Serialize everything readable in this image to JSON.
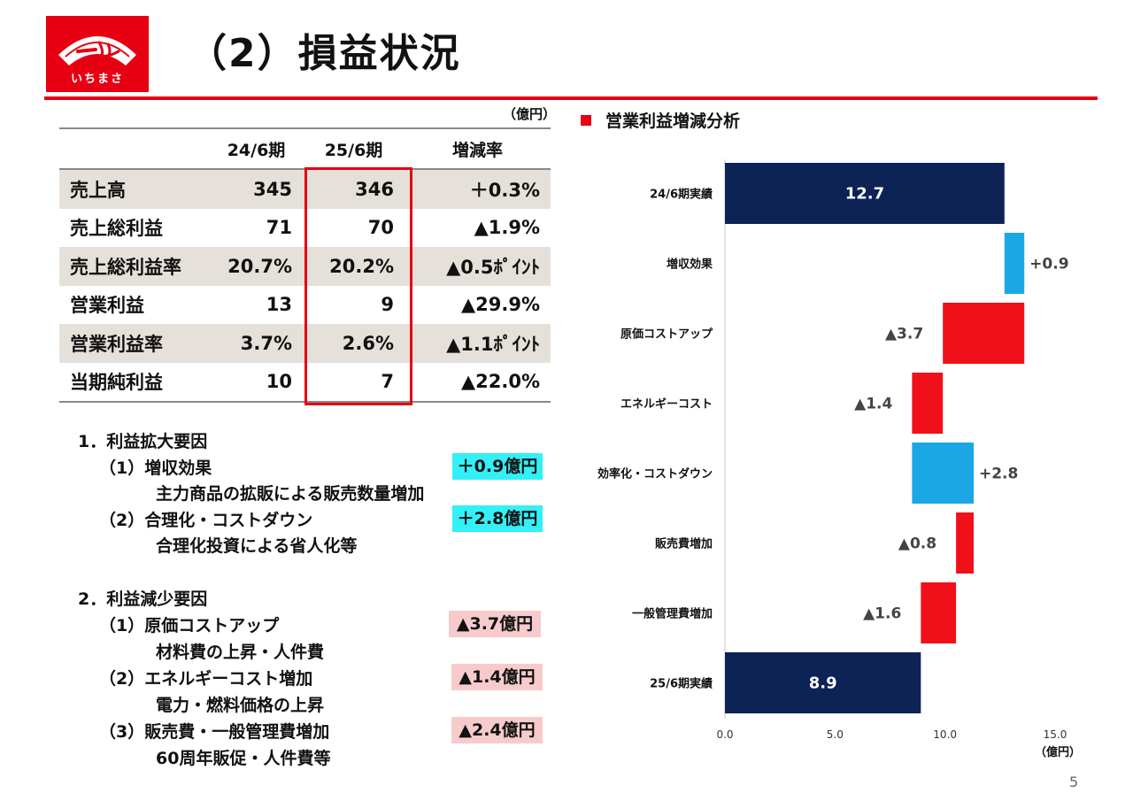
{
  "header": {
    "logo_text": "いちまさ",
    "title": "（2）損益状況"
  },
  "table": {
    "unit": "（億円）",
    "headers": [
      "",
      "24/6期",
      "25/6期",
      "増減率"
    ],
    "rows": [
      {
        "label": "売上高",
        "prev": "345",
        "curr": "346",
        "change": "＋0.3%"
      },
      {
        "label": "売上総利益",
        "prev": "71",
        "curr": "70",
        "change": "▲1.9%"
      },
      {
        "label": "売上総利益率",
        "prev": "20.7%",
        "curr": "20.2%",
        "change": "▲0.5ﾎﾟｲﾝﾄ"
      },
      {
        "label": "営業利益",
        "prev": "13",
        "curr": "9",
        "change": "▲29.9%"
      },
      {
        "label": "営業利益率",
        "prev": "3.7%",
        "curr": "2.6%",
        "change": "▲1.1ﾎﾟｲﾝﾄ"
      },
      {
        "label": "当期純利益",
        "prev": "10",
        "curr": "7",
        "change": "▲22.0%"
      }
    ]
  },
  "factors": {
    "increase": {
      "heading": "1．利益拡大要因",
      "items": [
        {
          "label": "（1）増収効果",
          "detail": "主力商品の拡販による販売数量増加",
          "amount": "＋0.9億円"
        },
        {
          "label": "（2）合理化・コストダウン",
          "detail": "合理化投資による省人化等",
          "amount": "＋2.8億円"
        }
      ]
    },
    "decrease": {
      "heading": "2．利益減少要因",
      "items": [
        {
          "label": "（1）原価コストアップ",
          "detail": "材料費の上昇・人件費",
          "amount": "▲3.7億円"
        },
        {
          "label": "（2）エネルギーコスト増加",
          "detail": "電力・燃料価格の上昇",
          "amount": "▲1.4億円"
        },
        {
          "label": "（3）販売費・一般管理費増加",
          "detail": "60周年販促・人件費等",
          "amount": "▲2.4億円"
        }
      ]
    }
  },
  "chart": {
    "title": "営業利益増減分析",
    "unit_label": "（億円）",
    "page_number": "5"
  },
  "chart_data": {
    "type": "bar",
    "orientation": "horizontal-waterfall",
    "title": "営業利益増減分析",
    "xlim": [
      0,
      15
    ],
    "xticks": [
      "0.0",
      "5.0",
      "10.0",
      "15.0"
    ],
    "colors": {
      "total": "#0d2255",
      "increase": "#1ba6e6",
      "decrease": "#f0101a"
    },
    "steps": [
      {
        "category": "24/6期実績",
        "kind": "total",
        "start": 0,
        "end": 12.7,
        "label": "12.7"
      },
      {
        "category": "増収効果",
        "kind": "increase",
        "start": 12.7,
        "end": 13.6,
        "label": "+0.9"
      },
      {
        "category": "原価コストアップ",
        "kind": "decrease",
        "start": 13.6,
        "end": 9.9,
        "label": "▲3.7"
      },
      {
        "category": "エネルギーコスト",
        "kind": "decrease",
        "start": 9.9,
        "end": 8.5,
        "label": "▲1.4"
      },
      {
        "category": "効率化・コストダウン",
        "kind": "increase",
        "start": 8.5,
        "end": 11.3,
        "label": "+2.8"
      },
      {
        "category": "販売費増加",
        "kind": "decrease",
        "start": 11.3,
        "end": 10.5,
        "label": "▲0.8"
      },
      {
        "category": "一般管理費増加",
        "kind": "decrease",
        "start": 10.5,
        "end": 8.9,
        "label": "▲1.6"
      },
      {
        "category": "25/6期実績",
        "kind": "total",
        "start": 0,
        "end": 8.9,
        "label": "8.9"
      }
    ]
  }
}
